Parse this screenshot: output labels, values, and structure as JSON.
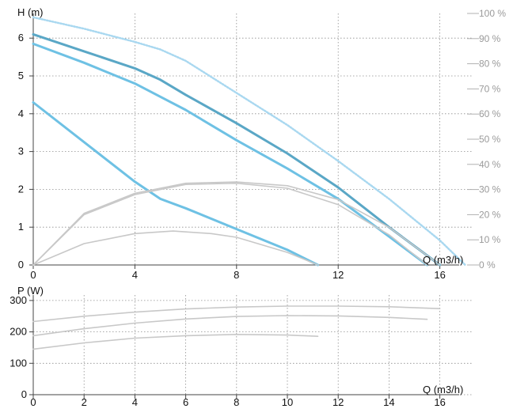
{
  "colors": {
    "head_light": "#6ec1e4",
    "head_dark": "#5aa7c6",
    "head_dashed": "#a9d8f0",
    "secondary": "#c8c8c8",
    "grid": "#8e8e8e",
    "axis": "#444444",
    "eff_text": "#9a9a9a"
  },
  "chart_data": [
    {
      "type": "line",
      "title": "",
      "ylabel": "H (m)",
      "xlabel": "Q (m3/h)",
      "xlim": [
        0,
        17
      ],
      "ylim": [
        0,
        6.5
      ],
      "grid": true,
      "x_ticks": [
        "0",
        "4",
        "8",
        "12",
        "16"
      ],
      "y_ticks": [
        "0",
        "1",
        "2",
        "3",
        "4",
        "5",
        "6"
      ],
      "y2_ticks": [
        "0 %",
        "10 %",
        "20 %",
        "30 %",
        "40 %",
        "50 %",
        "60 %",
        "70 %",
        "80 %",
        "90 %",
        "100 %"
      ],
      "y2lim": [
        0,
        100
      ],
      "series": [
        {
          "role": "head",
          "color": "dashed",
          "x": [
            0,
            2,
            4,
            5,
            6,
            8,
            10,
            12,
            14,
            16,
            17
          ],
          "y": [
            6.55,
            6.25,
            5.9,
            5.7,
            5.4,
            4.55,
            3.7,
            2.75,
            1.75,
            0.65,
            0
          ]
        },
        {
          "role": "head",
          "color": "dark",
          "x": [
            0,
            2,
            4,
            5,
            6,
            8,
            10,
            12,
            14,
            15,
            16
          ],
          "y": [
            6.1,
            5.65,
            5.2,
            4.9,
            4.5,
            3.75,
            2.95,
            2.05,
            1.0,
            0.5,
            0
          ]
        },
        {
          "role": "head",
          "color": "light",
          "x": [
            0,
            2,
            4,
            6,
            8,
            10,
            12,
            14,
            15.5
          ],
          "y": [
            5.85,
            5.35,
            4.8,
            4.1,
            3.3,
            2.55,
            1.75,
            0.75,
            0
          ]
        },
        {
          "role": "head",
          "color": "light",
          "x": [
            0,
            2,
            4,
            5,
            6,
            8,
            10,
            11.2
          ],
          "y": [
            4.3,
            3.25,
            2.2,
            1.75,
            1.5,
            0.95,
            0.4,
            0
          ]
        },
        {
          "role": "efficiency",
          "x": [
            0,
            2,
            4,
            6,
            8,
            10,
            12,
            14,
            16
          ],
          "y": [
            0,
            20.5,
            28.5,
            32.5,
            33,
            31.5,
            26,
            15,
            0
          ]
        },
        {
          "role": "efficiency",
          "x": [
            0,
            2,
            4,
            6,
            8,
            10,
            12,
            14,
            15.5
          ],
          "y": [
            0,
            20,
            28,
            32,
            32.5,
            30.5,
            24,
            12,
            0
          ]
        },
        {
          "role": "efficiency",
          "x": [
            0,
            2,
            4,
            5.5,
            7,
            8,
            10,
            11.2
          ],
          "y": [
            0,
            8.5,
            12.5,
            13.5,
            12.5,
            11,
            5,
            0
          ]
        }
      ]
    },
    {
      "type": "line",
      "title": "",
      "ylabel": "P (W)",
      "xlabel": "Q (m3/h)",
      "xlim": [
        0,
        17
      ],
      "ylim": [
        0,
        310
      ],
      "grid": true,
      "x_ticks": [
        "0",
        "2",
        "4",
        "6",
        "8",
        "10",
        "12",
        "14",
        "16"
      ],
      "y_ticks": [
        "0",
        "100",
        "200",
        "300"
      ],
      "series": [
        {
          "role": "power",
          "x": [
            0,
            2,
            4,
            6,
            8,
            10,
            12,
            14,
            16
          ],
          "y": [
            233,
            250,
            263,
            273,
            279,
            282,
            282,
            280,
            274
          ]
        },
        {
          "role": "power",
          "x": [
            0,
            2,
            4,
            6,
            8,
            10,
            12,
            14,
            15.5
          ],
          "y": [
            188,
            210,
            228,
            241,
            249,
            252,
            251,
            246,
            240
          ]
        },
        {
          "role": "power",
          "x": [
            0,
            2,
            4,
            6,
            8,
            10,
            11.2
          ],
          "y": [
            145,
            165,
            180,
            188,
            192,
            190,
            186
          ]
        }
      ]
    }
  ]
}
